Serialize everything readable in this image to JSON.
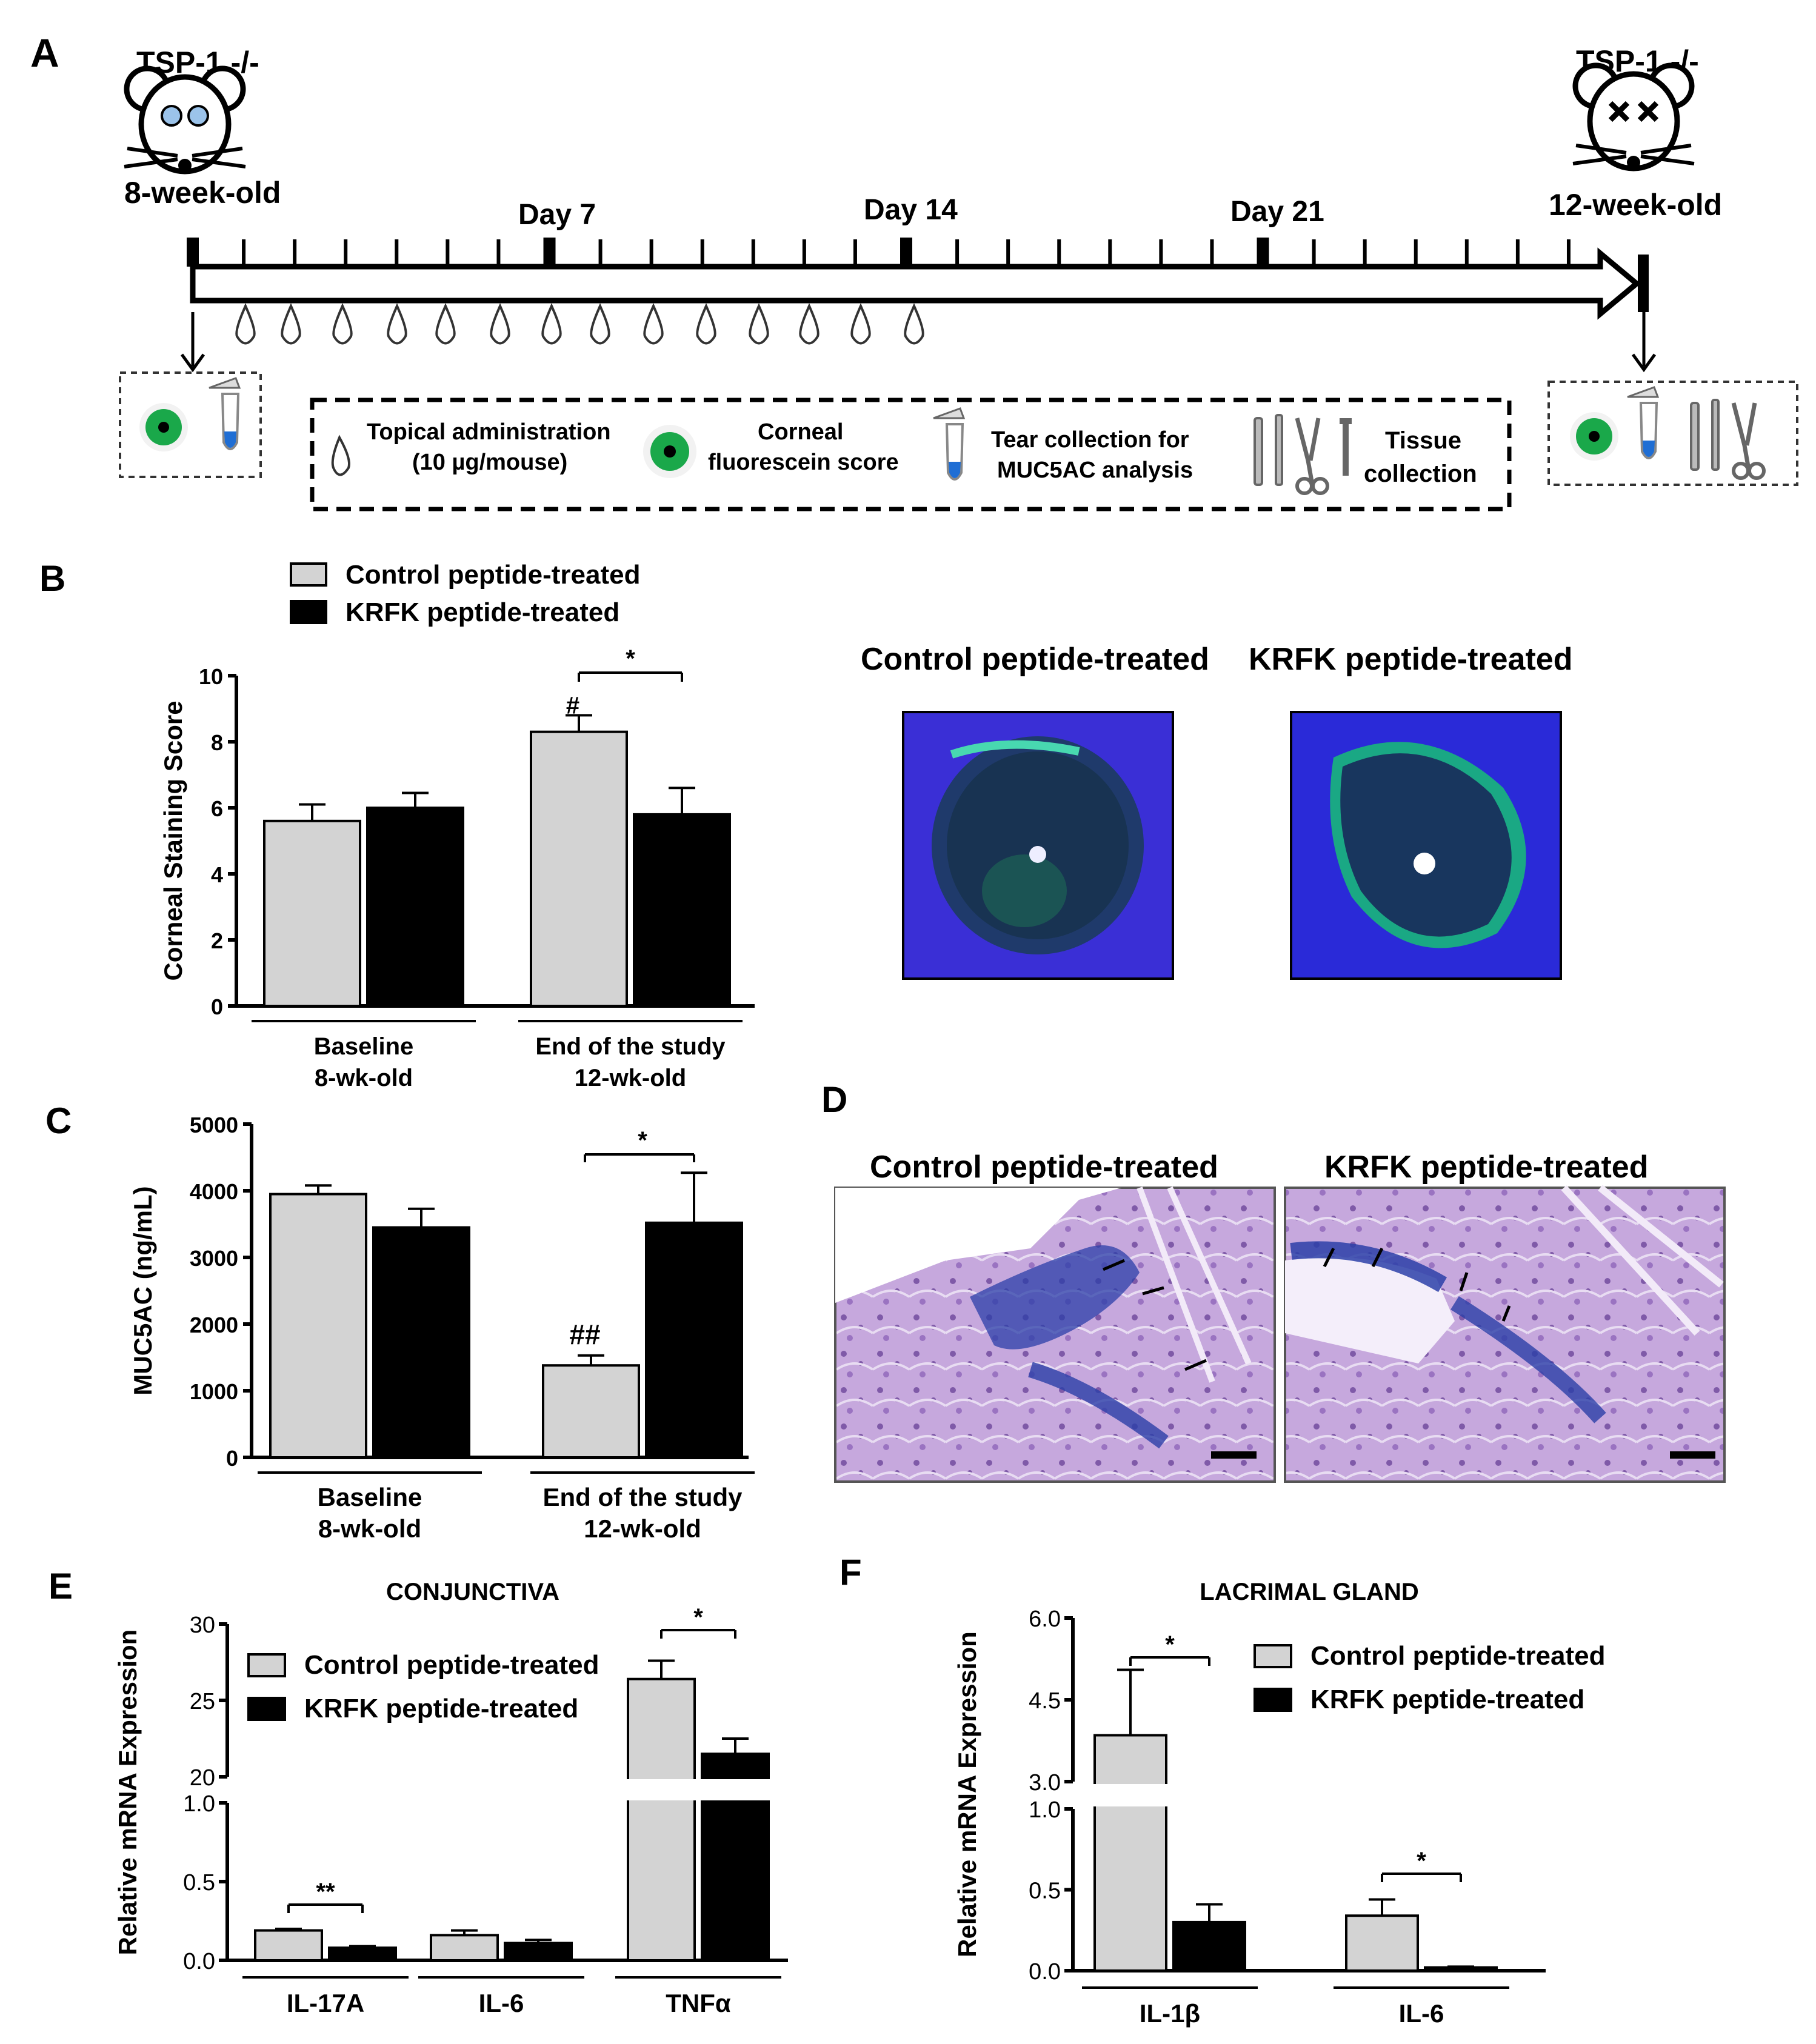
{
  "colors": {
    "control": "#d3d3d3",
    "krfk": "#000000",
    "fluor_bg": "#2a2ad8",
    "stain_green": "#1aa84a",
    "pas_purple": "#b79ad3",
    "pas_blue": "#2b3fa8"
  },
  "panelA": {
    "label": "A",
    "mouse_left": {
      "label": "TSP-1 -/-",
      "age": "8-week-old"
    },
    "mouse_right": {
      "label": "TSP-1 -/-",
      "age": "12-week-old"
    },
    "days": [
      "Day 7",
      "Day 14",
      "Day 21"
    ],
    "drops_count": 14,
    "legend": {
      "topical_1": "Topical administration",
      "topical_2": "(10 µg/mouse)",
      "corneal_1": "Corneal",
      "corneal_2": "fluorescein score",
      "tear_1": "Tear collection for",
      "tear_2": "MUC5AC analysis",
      "tissue_1": "Tissue",
      "tissue_2": "collection"
    }
  },
  "panelB": {
    "label": "B",
    "legend": [
      "Control peptide-treated",
      "KRFK peptide-treated"
    ],
    "img_titles": [
      "Control peptide-treated",
      "KRFK peptide-treated"
    ]
  },
  "panelC": {
    "label": "C"
  },
  "panelD": {
    "label": "D",
    "img_titles": [
      "Control peptide-treated",
      "KRFK peptide-treated"
    ]
  },
  "panelE": {
    "label": "E",
    "legend": [
      "Control peptide-treated",
      "KRFK peptide-treated"
    ]
  },
  "panelF": {
    "label": "F",
    "legend": [
      "Control peptide-treated",
      "KRFK peptide-treated"
    ]
  },
  "chart_data": [
    {
      "panel": "B",
      "type": "bar",
      "ylabel": "Corneal Staining Score",
      "ylim": [
        0,
        10
      ],
      "yticks": [
        "0",
        "2",
        "4",
        "6",
        "8",
        "10"
      ],
      "categories": [
        [
          "Baseline",
          "8-wk-old"
        ],
        [
          "End of the study",
          "12-wk-old"
        ]
      ],
      "series": [
        {
          "name": "Control peptide-treated",
          "values": [
            5.6,
            8.3
          ],
          "errors": [
            0.5,
            0.5
          ]
        },
        {
          "name": "KRFK peptide-treated",
          "values": [
            6.0,
            5.8
          ],
          "errors": [
            0.45,
            0.8
          ]
        }
      ],
      "annotations": [
        "#",
        "*"
      ]
    },
    {
      "panel": "C",
      "type": "bar",
      "ylabel": "MUC5AC (ng/mL)",
      "ylim": [
        0,
        5000
      ],
      "yticks": [
        "0",
        "1000",
        "2000",
        "3000",
        "4000",
        "5000"
      ],
      "categories": [
        [
          "Baseline",
          "8-wk-old"
        ],
        [
          "End of the study",
          "12-wk-old"
        ]
      ],
      "series": [
        {
          "name": "Control peptide-treated",
          "values": [
            3950,
            1380
          ],
          "errors": [
            130,
            150
          ]
        },
        {
          "name": "KRFK peptide-treated",
          "values": [
            3450,
            3520
          ],
          "errors": [
            280,
            750
          ]
        }
      ],
      "annotations": [
        "##",
        "*"
      ]
    },
    {
      "panel": "E",
      "type": "bar",
      "title": "CONJUNCTIVA",
      "ylabel": "Relative mRNA Expression",
      "yticks_lower": [
        "0.0",
        "0.5",
        "1.0"
      ],
      "yticks_upper": [
        "20",
        "25",
        "30"
      ],
      "categories": [
        "IL-17A",
        "IL-6",
        "TNFα"
      ],
      "series": [
        {
          "name": "Control peptide-treated",
          "values": [
            0.19,
            0.16,
            26.4
          ],
          "errors": [
            0.01,
            0.03,
            1.2
          ]
        },
        {
          "name": "KRFK peptide-treated",
          "values": [
            0.08,
            0.11,
            21.5
          ],
          "errors": [
            0.01,
            0.02,
            1.0
          ]
        }
      ],
      "annotations": [
        "**",
        "*"
      ]
    },
    {
      "panel": "F",
      "type": "bar",
      "title": "LACRIMAL GLAND",
      "ylabel": "Relative mRNA Expression",
      "yticks_lower": [
        "0.0",
        "0.5",
        "1.0"
      ],
      "yticks_upper": [
        "3.0",
        "4.5",
        "6.0"
      ],
      "categories": [
        "IL-1β",
        "IL-6"
      ],
      "series": [
        {
          "name": "Control peptide-treated",
          "values": [
            3.85,
            0.34
          ],
          "errors": [
            1.2,
            0.1
          ]
        },
        {
          "name": "KRFK peptide-treated",
          "values": [
            0.3,
            0.02
          ],
          "errors": [
            0.11,
            0.005
          ]
        }
      ],
      "annotations": [
        "*",
        "*"
      ]
    }
  ]
}
